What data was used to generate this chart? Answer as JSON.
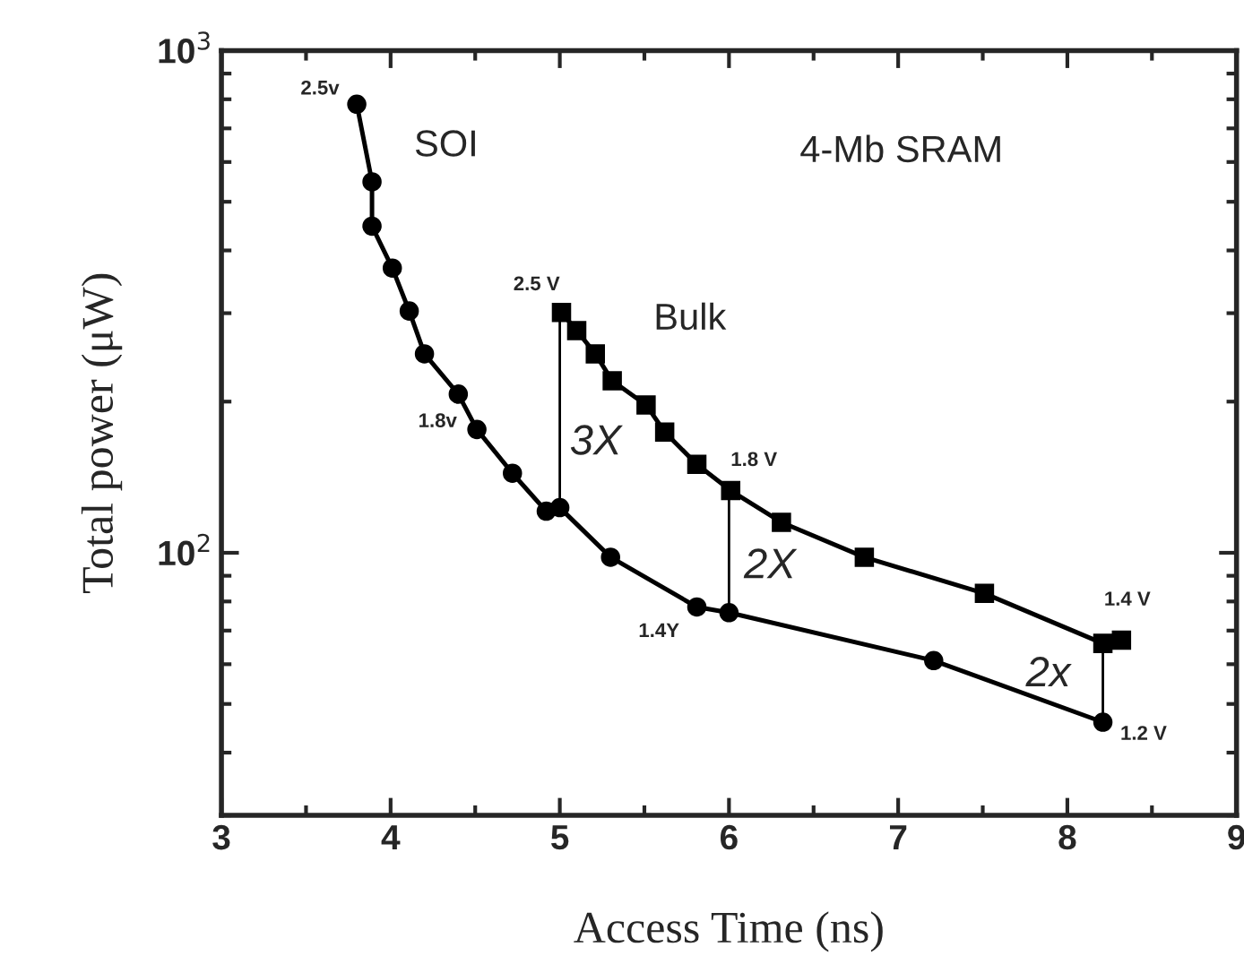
{
  "chart_data": {
    "type": "line",
    "xlabel": "Access Time (ns)",
    "ylabel": "Total power (μW)",
    "log": "y",
    "xlim": [
      3,
      9
    ],
    "xticks": [
      3,
      4,
      5,
      6,
      7,
      8,
      9
    ],
    "ylim": [
      30,
      1000
    ],
    "yticks": [
      {
        "value": 100,
        "label": "10$^{2}$"
      },
      {
        "value": 1000,
        "label": "10$^{3}$"
      }
    ],
    "grid": false,
    "legend": false,
    "series": [
      {
        "name": "SOI",
        "color": "#000000",
        "marker": "circle",
        "x": [
          3.8,
          3.89,
          3.89,
          4.01,
          4.11,
          4.2,
          4.4,
          4.51,
          4.72,
          4.92,
          5.0,
          5.3,
          5.81,
          6.0,
          7.21,
          8.21
        ],
        "values": [
          782,
          548,
          447,
          369,
          303,
          249,
          207,
          176,
          144,
          121,
          123,
          98,
          78,
          76,
          61,
          46
        ]
      },
      {
        "name": "Bulk",
        "color": "#000000",
        "marker": "square",
        "x": [
          5.01,
          5.1,
          5.21,
          5.31,
          5.51,
          5.62,
          5.81,
          6.01,
          6.31,
          6.8,
          7.51,
          8.21,
          8.32
        ],
        "values": [
          301,
          277,
          249,
          220,
          197,
          174,
          150,
          133,
          115,
          98,
          83,
          66,
          67
        ]
      },
      {
        "color": "#000000",
        "marker": "none",
        "x": [
          5.0,
          5.0
        ],
        "values": [
          123,
          301
        ]
      },
      {
        "color": "#000000",
        "marker": "none",
        "x": [
          6.0,
          6.0
        ],
        "values": [
          76,
          133
        ]
      },
      {
        "color": "#000000",
        "marker": "none",
        "x": [
          8.21,
          8.21
        ],
        "values": [
          46,
          66
        ]
      }
    ],
    "annotations": [
      {
        "text": "2.5v",
        "x": 3.8,
        "y": 782
      },
      {
        "text": "1.8v",
        "x": 4.51,
        "y": 176
      },
      {
        "text": "1.4Y",
        "x": 5.81,
        "y": 78
      },
      {
        "text": "1.2 V",
        "x": 8.21,
        "y": 46
      },
      {
        "text": "2.5 V",
        "x": 5.01,
        "y": 301
      },
      {
        "text": "1.8 V",
        "x": 6.01,
        "y": 133
      },
      {
        "text": "1.4 V",
        "x": 8.32,
        "y": 67
      },
      {
        "text": "3X",
        "x": 5.0,
        "y": 165
      },
      {
        "text": "2X",
        "x": 6.0,
        "y": 98
      },
      {
        "text": "2x",
        "x": 8.21,
        "y": 57
      },
      "4-Mb SRAM"
    ]
  }
}
